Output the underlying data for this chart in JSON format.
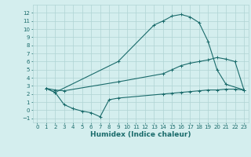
{
  "line1_x": [
    1,
    2,
    9,
    13,
    14,
    15,
    16,
    17,
    18,
    19,
    20,
    21,
    23
  ],
  "line1_y": [
    2.7,
    2.2,
    6.0,
    10.5,
    11.0,
    11.6,
    11.8,
    11.5,
    10.8,
    8.5,
    5.0,
    3.2,
    2.5
  ],
  "line2_x": [
    1,
    2,
    3,
    9,
    14,
    15,
    16,
    17,
    18,
    19,
    20,
    21,
    22,
    23
  ],
  "line2_y": [
    2.7,
    2.5,
    2.4,
    3.5,
    4.5,
    5.0,
    5.5,
    5.8,
    6.0,
    6.2,
    6.5,
    6.3,
    6.0,
    2.5
  ],
  "line3_x": [
    1,
    2,
    3,
    4,
    5,
    6,
    7,
    8,
    9,
    14,
    15,
    16,
    17,
    18,
    19,
    20,
    21,
    22,
    23
  ],
  "line3_y": [
    2.7,
    2.2,
    0.7,
    0.2,
    -0.1,
    -0.3,
    -0.8,
    1.3,
    1.5,
    2.0,
    2.1,
    2.2,
    2.3,
    2.4,
    2.5,
    2.5,
    2.6,
    2.6,
    2.5
  ],
  "line_color": "#1a6b6b",
  "bg_color": "#d4eeee",
  "grid_color": "#afd4d4",
  "xlabel": "Humidex (Indice chaleur)",
  "xlim": [
    -0.5,
    23.5
  ],
  "ylim": [
    -1.5,
    13.0
  ],
  "xticks": [
    0,
    1,
    2,
    3,
    4,
    5,
    6,
    7,
    8,
    9,
    10,
    11,
    12,
    13,
    14,
    15,
    16,
    17,
    18,
    19,
    20,
    21,
    22,
    23
  ],
  "yticks": [
    -1,
    0,
    1,
    2,
    3,
    4,
    5,
    6,
    7,
    8,
    9,
    10,
    11,
    12
  ],
  "tick_fontsize": 5.0,
  "xlabel_fontsize": 6.5,
  "marker": "+"
}
